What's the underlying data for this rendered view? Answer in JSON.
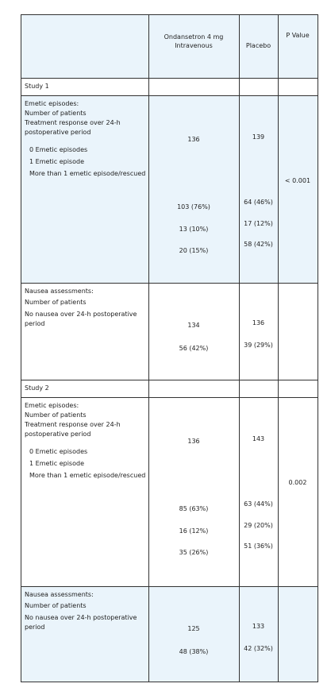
{
  "table": {
    "header": [
      "",
      [
        "Ondansetron 4 mg",
        "Intravenous"
      ],
      "Placebo",
      "P Value"
    ],
    "sections": [
      {
        "title": "Study 1",
        "blocks": [
          {
            "labels": [
              "Emetic episodes:",
              "Number of patients",
              "Treatment response over 24-h",
              "postoperative period",
              "0 Emetic episodes",
              "1 Emetic episode",
              "More than 1 emetic episode/rescued"
            ],
            "ondansetron": [
              "136",
              "103 (76%)",
              "13 (10%)",
              "20 (15%)"
            ],
            "placebo": [
              "139",
              "64 (46%)",
              "17 (12%)",
              "58 (42%)"
            ],
            "p_value": "< 0.001"
          },
          {
            "labels": [
              "Nausea assessments:",
              "Number of patients",
              "No nausea over 24-h postoperative",
              "period"
            ],
            "ondansetron": [
              "134",
              "56 (42%)"
            ],
            "placebo": [
              "136",
              "39 (29%)"
            ],
            "p_value": null
          }
        ]
      },
      {
        "title": "Study 2",
        "blocks": [
          {
            "labels": [
              "Emetic episodes:",
              "Number of patients",
              "Treatment response over 24-h",
              "postoperative period",
              "0 Emetic episodes",
              "1 Emetic episode",
              "More than 1 emetic episode/rescued"
            ],
            "ondansetron": [
              "136",
              "85 (63%)",
              "16 (12%)",
              "35 (26%)"
            ],
            "placebo": [
              "143",
              "63 (44%)",
              "29 (20%)",
              "51 (36%)"
            ],
            "p_value": "0.002"
          },
          {
            "labels": [
              "Nausea assessments:",
              "Number of patients",
              "No nausea over 24-h postoperative",
              "period"
            ],
            "ondansetron": [
              "125",
              "48 (38%)"
            ],
            "placebo": [
              "133",
              "42 (32%)"
            ],
            "p_value": null
          }
        ]
      }
    ]
  }
}
